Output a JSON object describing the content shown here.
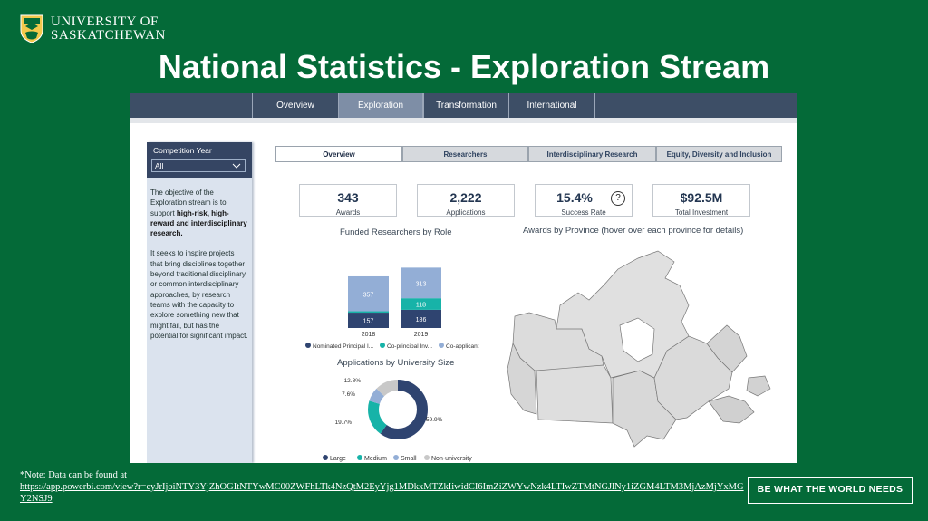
{
  "branding": {
    "logo_line1": "UNIVERSITY OF",
    "logo_line2": "SASKATCHEWAN",
    "tagline": "BE WHAT THE WORLD NEEDS"
  },
  "slide": {
    "title": "National Statistics - Exploration Stream",
    "note_label": "*Note: Data can be found at",
    "note_url": "https://app.powerbi.com/view?r=eyJrIjoiNTY3YjZhOGItNTYwMC00ZWFhLTk4NzQtM2EyYjg1MDkxMTZkIiwidCI6ImZiZWYwNzk4LTIwZTMtNGJlNy1iZGM4LTM3MjAzMjYxMGY2NSJ9"
  },
  "dashboard": {
    "nav_tabs": [
      "Overview",
      "Exploration",
      "Transformation",
      "International"
    ],
    "active_nav": "Exploration",
    "filter": {
      "label": "Competition Year",
      "value": "All"
    },
    "description": {
      "p1_pre": "The objective of the Exploration stream is to support ",
      "p1_bold": "high-risk, high-reward and interdisciplinary research.",
      "p2": "It seeks to inspire projects that bring disciplines together beyond traditional disciplinary or common interdisciplinary approaches, by research teams with the capacity to explore something new that might fail, but has the potential for significant impact."
    },
    "sub_tabs": [
      "Overview",
      "Researchers",
      "Interdisciplinary Research",
      "Equity, Diversity and Inclusion"
    ],
    "kpis": [
      {
        "value": "343",
        "label": "Awards"
      },
      {
        "value": "2,222",
        "label": "Applications"
      },
      {
        "value": "15.4%",
        "label": "Success Rate"
      },
      {
        "value": "$92.5M",
        "label": "Total Investment"
      }
    ],
    "help_icon": "?",
    "map_title": "Awards by Province (hover over each province for details)",
    "colors": {
      "dark_navy": "#2f4470",
      "teal": "#17b3a8",
      "light_blue": "#93aed6",
      "grey": "#c8c8c8",
      "nav": "#3d4e66"
    }
  },
  "chart_data": [
    {
      "type": "bar",
      "stacked": true,
      "title": "Funded Researchers by Role",
      "categories": [
        "2018",
        "2019"
      ],
      "series": [
        {
          "name": "Nominated Principal I...",
          "values": [
            157,
            186
          ],
          "color": "#2f4470"
        },
        {
          "name": "Co-principal Inv...",
          "values": [
            14,
            118
          ],
          "color": "#17b3a8"
        },
        {
          "name": "Co-applicant",
          "values": [
            357,
            313
          ],
          "color": "#93aed6"
        }
      ],
      "data_labels": [
        [
          "157",
          "186"
        ],
        [
          "",
          "118"
        ],
        [
          "357",
          "313"
        ]
      ],
      "legend": "bottom"
    },
    {
      "type": "pie",
      "donut": true,
      "title": "Applications by University Size",
      "labels": [
        "Large",
        "Medium",
        "Small",
        "Non-university"
      ],
      "values": [
        59.9,
        19.7,
        7.6,
        12.8
      ],
      "data_labels": [
        "59.9%",
        "19.7%",
        "7.6%",
        "12.8%"
      ],
      "colors": [
        "#2f4470",
        "#17b3a8",
        "#93aed6",
        "#c8c8c8"
      ],
      "legend": "bottom"
    }
  ]
}
